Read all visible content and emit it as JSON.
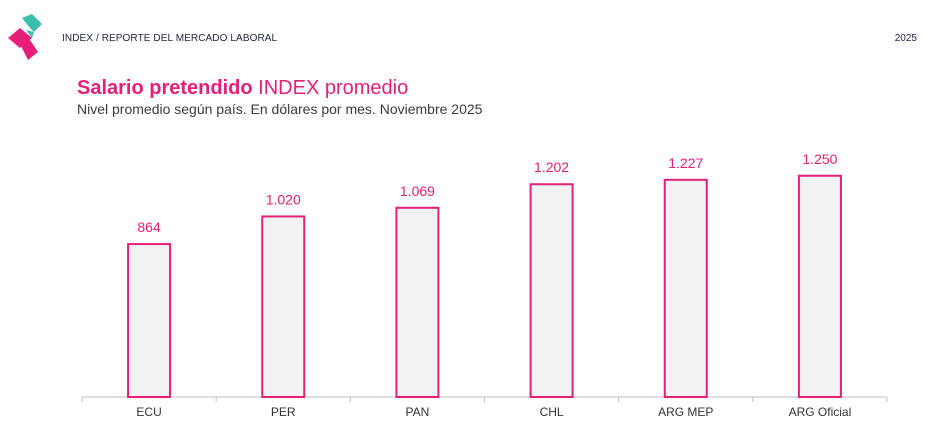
{
  "header": {
    "breadcrumb": "INDEX / REPORTE DEL MERCADO LABORAL",
    "year": "2025"
  },
  "brand": {
    "logo_icon": "index-logo-icon",
    "primary_color": "#e6207a",
    "secondary_color": "#3cbfae"
  },
  "chart_data": {
    "type": "bar",
    "title_bold": "Salario pretendido",
    "title_rest": "INDEX promedio",
    "subtitle": "Nivel promedio según país. En dólares por mes. Noviembre 2025",
    "categories": [
      "ECU",
      "PER",
      "PAN",
      "CHL",
      "ARG MEP",
      "ARG Oficial"
    ],
    "values": [
      864,
      1020,
      1069,
      1202,
      1227,
      1250
    ],
    "value_labels": [
      "864",
      "1.020",
      "1.069",
      "1.202",
      "1.227",
      "1.250"
    ],
    "ylim": [
      0,
      1250
    ],
    "bar_fill": "#f2f2f2",
    "bar_stroke": "#e6207a",
    "grid": false,
    "legend": "none"
  }
}
